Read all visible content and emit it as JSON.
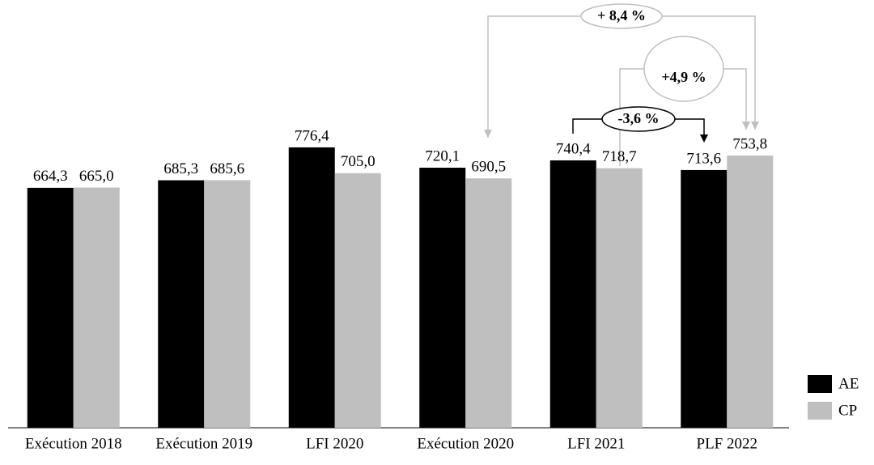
{
  "chart_data": {
    "type": "bar",
    "categories": [
      "Exécution 2018",
      "Exécution 2019",
      "LFI 2020",
      "Exécution 2020",
      "LFI 2021",
      "PLF 2022"
    ],
    "series": [
      {
        "name": "AE",
        "color": "#000000",
        "values": [
          664.3,
          685.3,
          776.4,
          720.1,
          740.4,
          713.6
        ],
        "value_labels": [
          "664,3",
          "685,3",
          "776,4",
          "720,1",
          "740,4",
          "713,6"
        ]
      },
      {
        "name": "CP",
        "color": "#bfbfbf",
        "values": [
          665.0,
          685.6,
          705.0,
          690.5,
          718.7,
          753.8
        ],
        "value_labels": [
          "665,0",
          "685,6",
          "705,0",
          "690,5",
          "718,7",
          "753,8"
        ]
      }
    ],
    "ylim": [
      0,
      800
    ],
    "annotations": [
      "+ 8,4 %",
      "+4,9 %",
      "-3,6 %"
    ],
    "legend": "bottom-right"
  }
}
